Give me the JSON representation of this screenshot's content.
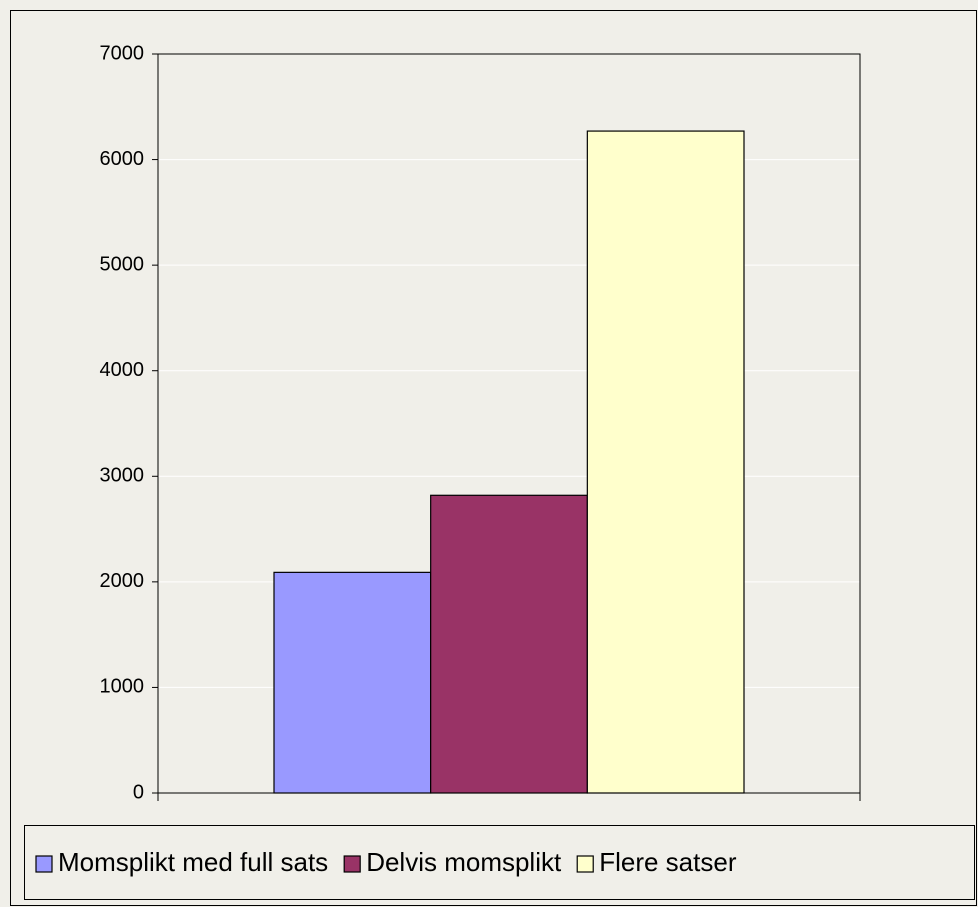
{
  "chart_data": {
    "type": "bar",
    "categories": [
      null
    ],
    "series": [
      {
        "name": "Momsplikt med full sats",
        "color": "#9999ff",
        "values": [
          2090
        ]
      },
      {
        "name": "Delvis momsplikt",
        "color": "#993366",
        "values": [
          2820
        ]
      },
      {
        "name": "Flere satser",
        "color": "#ffffcc",
        "values": [
          6270
        ]
      }
    ],
    "ylim": [
      0,
      7000
    ],
    "yticks": [
      0,
      1000,
      2000,
      3000,
      4000,
      5000,
      6000,
      7000
    ],
    "grid": true,
    "legend": "bottom"
  }
}
